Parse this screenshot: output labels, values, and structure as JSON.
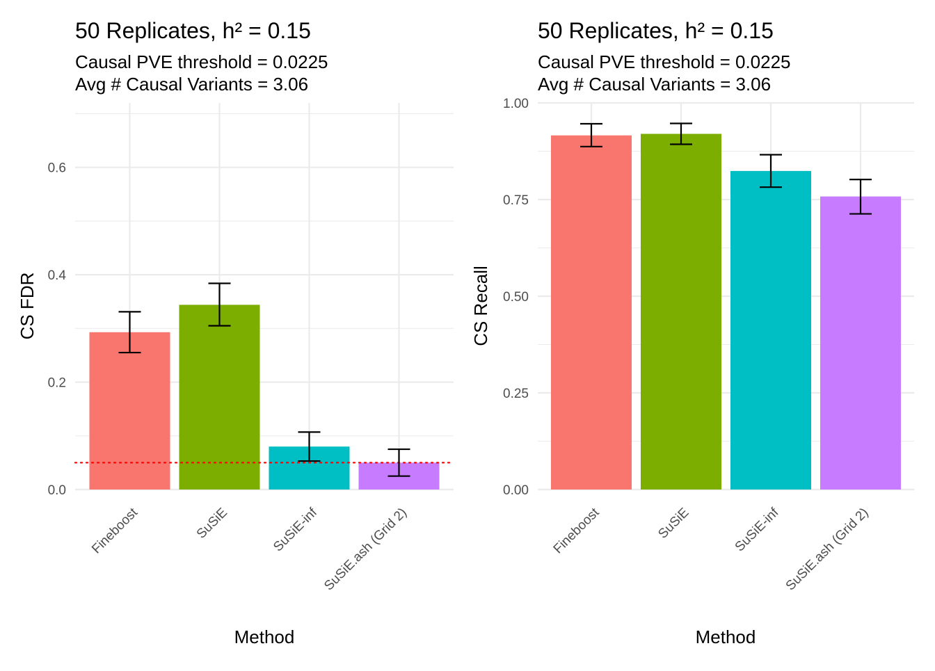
{
  "chart_data": [
    {
      "type": "bar",
      "title": "50 Replicates, h² = 0.15",
      "subtitle_lines": [
        "Causal PVE threshold = 0.0225",
        "Avg # Causal Variants = 3.06"
      ],
      "xlabel": "Method",
      "ylabel": "CS FDR",
      "ylim": [
        0,
        0.72
      ],
      "yticks": [
        0,
        0.2,
        0.4,
        0.6
      ],
      "ytick_labels": [
        "0.0",
        "0.2",
        "0.4",
        "0.6"
      ],
      "grid": true,
      "legend": "none",
      "categories": [
        "Fineboost",
        "SuSiE",
        "SuSiE-inf",
        "SuSiE.ash (Grid 2)"
      ],
      "values": [
        0.293,
        0.344,
        0.08,
        0.05
      ],
      "error_low": [
        0.255,
        0.305,
        0.053,
        0.025
      ],
      "error_high": [
        0.331,
        0.384,
        0.107,
        0.075
      ],
      "colors": [
        "#F8766D",
        "#7CAE00",
        "#00BFC4",
        "#C77CFF"
      ],
      "reference_line": {
        "y": 0.05,
        "color": "#ff0000",
        "style": "dotted"
      }
    },
    {
      "type": "bar",
      "title": "50 Replicates, h² = 0.15",
      "subtitle_lines": [
        "Causal PVE threshold = 0.0225",
        "Avg # Causal Variants = 3.06"
      ],
      "xlabel": "Method",
      "ylabel": "CS Recall",
      "ylim": [
        0,
        1.0
      ],
      "yticks": [
        0,
        0.25,
        0.5,
        0.75,
        1.0
      ],
      "ytick_labels": [
        "0.00",
        "0.25",
        "0.50",
        "0.75",
        "1.00"
      ],
      "grid": true,
      "legend": "none",
      "categories": [
        "Fineboost",
        "SuSiE",
        "SuSiE-inf",
        "SuSiE.ash (Grid 2)"
      ],
      "values": [
        0.916,
        0.92,
        0.824,
        0.758
      ],
      "error_low": [
        0.887,
        0.893,
        0.782,
        0.713
      ],
      "error_high": [
        0.946,
        0.947,
        0.866,
        0.802
      ],
      "colors": [
        "#F8766D",
        "#7CAE00",
        "#00BFC4",
        "#C77CFF"
      ]
    }
  ]
}
